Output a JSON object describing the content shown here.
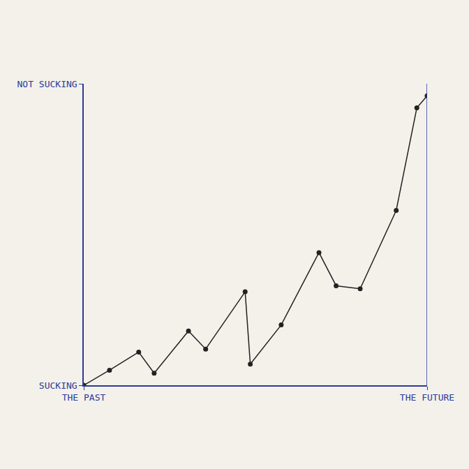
{
  "chart_data": {
    "type": "line",
    "x": [
      0,
      1.5,
      3.2,
      4.1,
      6.1,
      7.1,
      9.4,
      9.7,
      11.5,
      13.7,
      14.7,
      16.1,
      18.2,
      19.4,
      20
    ],
    "values": [
      0,
      0.5,
      1.1,
      0.4,
      1.8,
      1.2,
      3.1,
      0.7,
      2.0,
      4.4,
      3.3,
      3.2,
      5.8,
      9.2,
      9.6
    ],
    "xlim": [
      0,
      20
    ],
    "ylim": [
      0,
      10
    ],
    "xticks": [
      {
        "value": 0,
        "label": "THE PAST"
      },
      {
        "value": 20,
        "label": "THE FUTURE"
      }
    ],
    "yticks": [
      {
        "value": 0,
        "label": "SUCKING"
      },
      {
        "value": 10,
        "label": "NOT SUCKING"
      }
    ],
    "color": "#222222",
    "marker": "circle",
    "grid": false
  }
}
